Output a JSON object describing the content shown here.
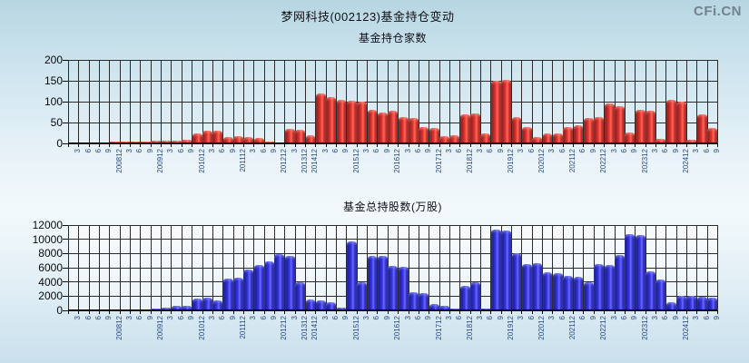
{
  "header": {
    "title": "梦网科技(002123)基金持仓变动",
    "brand": "CFi.CN"
  },
  "colors": {
    "background_top": "#b7d6e2",
    "background_mid": "#f3f9fc",
    "red_bar": "#e33636",
    "blue_bar": "#3636e3",
    "grid": "#2b2b2b",
    "x_tick_label": "#274a86",
    "brand_gray": "#73828c"
  },
  "chart_data": [
    {
      "type": "bar",
      "title": "基金持仓家数",
      "bar_color": "red",
      "ylim": [
        0,
        200
      ],
      "yticks": [
        0,
        50,
        100,
        150,
        200
      ],
      "grid": true,
      "legend_position": "none",
      "categories": [
        "3",
        "6",
        "6",
        "9",
        "200812",
        "3",
        "6",
        "9",
        "200912",
        "3",
        "6",
        "9",
        "201012",
        "3",
        "6",
        "9",
        "201112",
        "3",
        "6",
        "9",
        "201212",
        "3",
        "201312",
        "201412",
        "3",
        "6",
        "9",
        "201512",
        "3",
        "6",
        "9",
        "201612",
        "3",
        "6",
        "9",
        "201712",
        "3",
        "6",
        "201812",
        "3",
        "6",
        "9",
        "201912",
        "3",
        "6",
        "202012",
        "3",
        "6",
        "202112",
        "6",
        "9",
        "202212",
        "3",
        "6",
        "9",
        "202312",
        "3",
        "6",
        "9",
        "202412",
        "3",
        "6",
        "9"
      ],
      "values": [
        3,
        3,
        2,
        3,
        4,
        5,
        5,
        4,
        6,
        6,
        7,
        8,
        25,
        30,
        30,
        15,
        18,
        15,
        13,
        4,
        3,
        35,
        33,
        20,
        120,
        110,
        105,
        103,
        100,
        80,
        75,
        78,
        63,
        60,
        40,
        38,
        17,
        20,
        70,
        72,
        25,
        150,
        152,
        63,
        40,
        15,
        25,
        25,
        40,
        43,
        60,
        62,
        95,
        90,
        26,
        80,
        78,
        10,
        105,
        100,
        8,
        70,
        37
      ]
    },
    {
      "type": "bar",
      "title": "基金总持股数(万股)",
      "bar_color": "blue",
      "ylim": [
        0,
        12000
      ],
      "yticks": [
        0,
        2000,
        4000,
        6000,
        8000,
        10000,
        12000
      ],
      "grid": true,
      "legend_position": "none",
      "categories": [
        "3",
        "6",
        "6",
        "9",
        "200812",
        "3",
        "6",
        "9",
        "200912",
        "3",
        "6",
        "9",
        "201012",
        "3",
        "6",
        "9",
        "201112",
        "3",
        "6",
        "9",
        "201212",
        "3",
        "201312",
        "201412",
        "3",
        "6",
        "9",
        "201512",
        "3",
        "6",
        "9",
        "201612",
        "3",
        "6",
        "9",
        "201712",
        "3",
        "6",
        "201812",
        "3",
        "6",
        "9",
        "201912",
        "3",
        "6",
        "202012",
        "3",
        "6",
        "202112",
        "6",
        "9",
        "202212",
        "3",
        "6",
        "9",
        "202312",
        "3",
        "6",
        "9",
        "202412",
        "3",
        "6",
        "9"
      ],
      "values": [
        60,
        60,
        60,
        80,
        100,
        150,
        150,
        120,
        250,
        400,
        650,
        700,
        1700,
        1750,
        1400,
        4500,
        4650,
        5800,
        6400,
        6900,
        7900,
        7600,
        4000,
        1500,
        1400,
        1100,
        400,
        9700,
        4000,
        7700,
        7600,
        6200,
        6100,
        2500,
        2400,
        900,
        600,
        300,
        3400,
        4000,
        200,
        11300,
        11200,
        8000,
        6500,
        6700,
        5300,
        5200,
        4900,
        4700,
        4000,
        6500,
        6400,
        7800,
        10700,
        10600,
        5500,
        4300,
        1200,
        2100,
        2000,
        1900,
        1800
      ]
    }
  ]
}
